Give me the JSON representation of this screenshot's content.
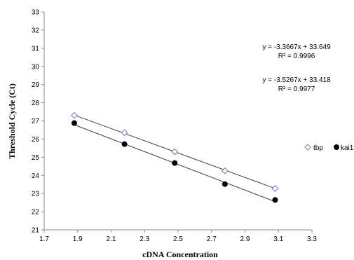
{
  "chart_data": {
    "type": "scatter",
    "xlabel": "cDNA Concentration",
    "ylabel": "Threshold Cycle (Ct)",
    "xlim": [
      1.7,
      3.3
    ],
    "ylim": [
      21,
      33
    ],
    "x_ticks": [
      "1.7",
      "1.9",
      "2.1",
      "2.3",
      "2.5",
      "2.7",
      "2.9",
      "3.1",
      "3.3"
    ],
    "y_ticks": [
      "21",
      "22",
      "23",
      "24",
      "25",
      "26",
      "27",
      "28",
      "29",
      "30",
      "31",
      "32",
      "33"
    ],
    "grid": false,
    "legend_position": "right",
    "series": [
      {
        "name": "tbp",
        "marker": "open-diamond",
        "color": "#6c7fb8",
        "x": [
          1.88,
          2.18,
          2.48,
          2.78,
          3.08
        ],
        "y": [
          27.3,
          26.35,
          25.3,
          24.25,
          23.28
        ],
        "trendline": {
          "slope": -3.3667,
          "intercept": 33.649
        }
      },
      {
        "name": "kai1",
        "marker": "filled-circle",
        "color": "#000000",
        "x": [
          1.88,
          2.18,
          2.48,
          2.78,
          3.08
        ],
        "y": [
          26.88,
          25.72,
          24.68,
          23.52,
          22.65
        ],
        "trendline": {
          "slope": -3.5267,
          "intercept": 33.418
        }
      }
    ],
    "annotations": [
      {
        "equation": "y = -3.3667x + 33.649",
        "r2": "R² = 0.9996"
      },
      {
        "equation": "y = -3.5267x + 33.418",
        "r2": "R² = 0.9977"
      }
    ]
  }
}
